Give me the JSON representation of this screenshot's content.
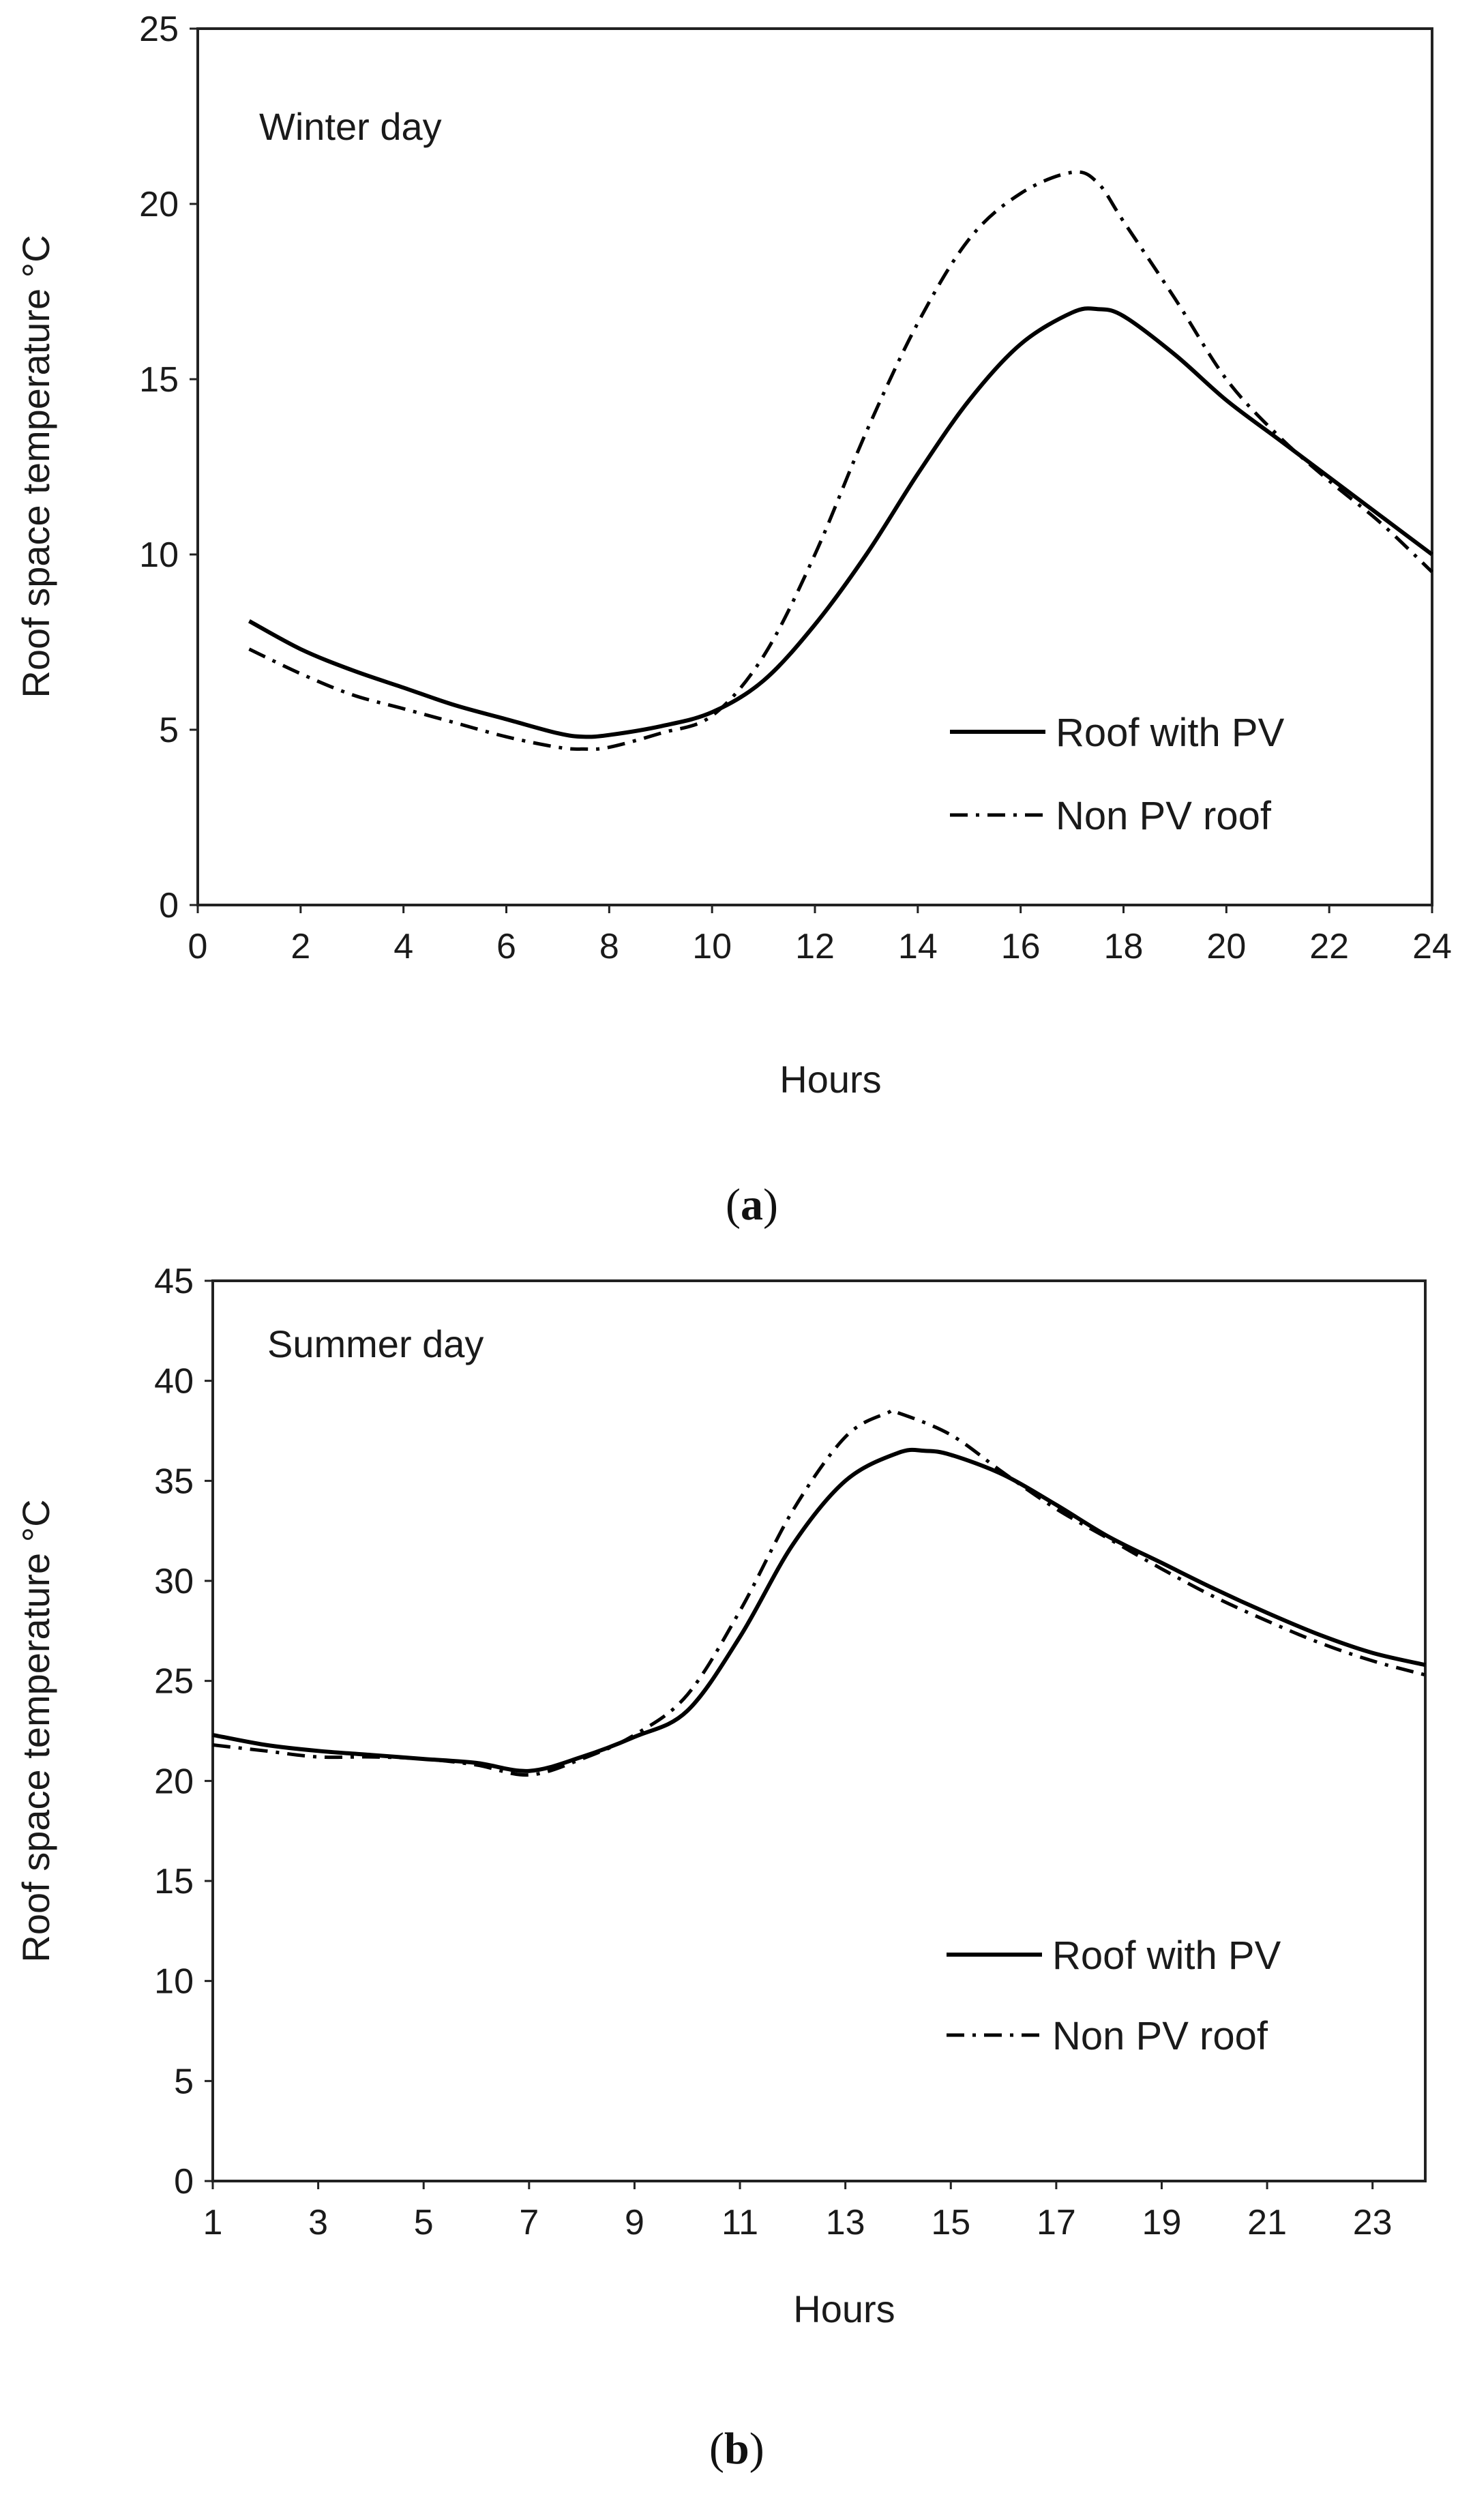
{
  "chart_data": [
    {
      "type": "line",
      "panel": "a",
      "caption": "a",
      "annotation": "Winter day",
      "xlabel": "Hours",
      "ylabel": "Roof space temperature °C",
      "xlim": [
        0,
        24
      ],
      "ylim": [
        0,
        25
      ],
      "xticks": [
        0,
        2,
        4,
        6,
        8,
        10,
        12,
        14,
        16,
        18,
        20,
        22,
        24
      ],
      "yticks": [
        0,
        5,
        10,
        15,
        20,
        25
      ],
      "grid": false,
      "legend_position": "lower-right",
      "series": [
        {
          "name": "Roof with PV",
          "style": "solid",
          "color": "#000000",
          "x": [
            1,
            2,
            3,
            4,
            5,
            6,
            7,
            7.5,
            8,
            9,
            10,
            11,
            12,
            13,
            14,
            15,
            16,
            17,
            17.5,
            18,
            19,
            20,
            21,
            22,
            23,
            24
          ],
          "y": [
            8.1,
            7.3,
            6.7,
            6.2,
            5.7,
            5.3,
            4.9,
            4.8,
            4.85,
            5.1,
            5.5,
            6.4,
            8.0,
            10.0,
            12.3,
            14.4,
            16.0,
            16.9,
            17.0,
            16.8,
            15.7,
            14.4,
            13.3,
            12.2,
            11.1,
            10.0
          ]
        },
        {
          "name": "Non PV roof",
          "style": "dashdot",
          "color": "#000000",
          "x": [
            1,
            2,
            3,
            4,
            5,
            6,
            7,
            7.5,
            8,
            9,
            10,
            11,
            12,
            13,
            14,
            15,
            16,
            17,
            17.5,
            18,
            19,
            20,
            21,
            22,
            23,
            24
          ],
          "y": [
            7.3,
            6.6,
            6.0,
            5.6,
            5.2,
            4.8,
            4.5,
            4.45,
            4.5,
            4.9,
            5.4,
            7.1,
            10.0,
            13.5,
            16.6,
            19.0,
            20.3,
            20.9,
            20.6,
            19.5,
            17.3,
            15.0,
            13.4,
            12.1,
            10.9,
            9.5
          ]
        }
      ]
    },
    {
      "type": "line",
      "panel": "b",
      "caption": "b",
      "annotation": "Summer day",
      "xlabel": "Hours",
      "ylabel": "Roof space temperature °C",
      "xlim": [
        1,
        24
      ],
      "ylim": [
        0,
        45
      ],
      "xticks": [
        1,
        3,
        5,
        7,
        9,
        11,
        13,
        15,
        17,
        19,
        21,
        23
      ],
      "yticks": [
        0,
        5,
        10,
        15,
        20,
        25,
        30,
        35,
        40,
        45
      ],
      "grid": false,
      "legend_position": "lower-right",
      "series": [
        {
          "name": "Roof with PV",
          "style": "solid",
          "color": "#000000",
          "x": [
            1,
            2,
            3,
            4,
            5,
            6,
            7,
            8,
            9,
            10,
            11,
            12,
            13,
            14,
            14.5,
            15,
            16,
            17,
            18,
            19,
            20,
            21,
            22,
            23,
            24
          ],
          "y": [
            22.3,
            21.8,
            21.5,
            21.3,
            21.1,
            20.9,
            20.5,
            21.2,
            22.2,
            23.5,
            27.2,
            31.8,
            35.0,
            36.4,
            36.5,
            36.3,
            35.3,
            33.8,
            32.2,
            30.9,
            29.6,
            28.4,
            27.3,
            26.4,
            25.8
          ]
        },
        {
          "name": "Non PV roof",
          "style": "dashdot",
          "color": "#000000",
          "x": [
            1,
            2,
            3,
            4,
            5,
            6,
            7,
            8,
            9,
            10,
            11,
            12,
            13,
            13.8,
            14,
            15,
            16,
            17,
            18,
            19,
            20,
            21,
            22,
            23,
            24
          ],
          "y": [
            21.8,
            21.5,
            21.2,
            21.2,
            21.1,
            20.8,
            20.3,
            21.1,
            22.3,
            24.3,
            28.5,
            33.5,
            37.2,
            38.4,
            38.4,
            37.3,
            35.4,
            33.6,
            32.1,
            30.6,
            29.2,
            28.0,
            26.9,
            26.0,
            25.3
          ]
        }
      ]
    }
  ]
}
